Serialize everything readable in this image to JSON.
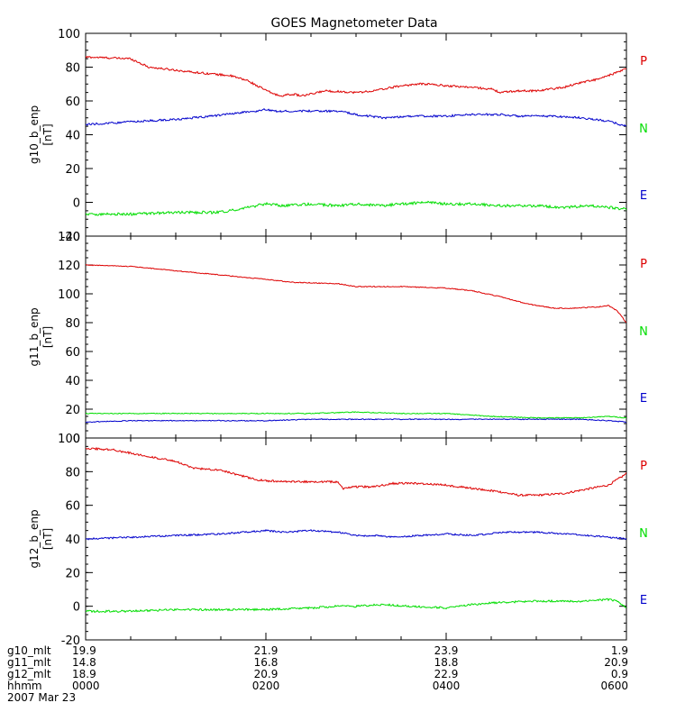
{
  "chart_data": {
    "type": "line",
    "title": "GOES Magnetometer Data",
    "x_domain": [
      0,
      6
    ],
    "x_tick_hours": [
      0,
      2,
      4,
      6
    ],
    "x_minor_step_hours": 0.5,
    "bottom_rows": [
      {
        "label": "g10_mlt",
        "values": [
          "19.9",
          "21.9",
          "23.9",
          "1.9"
        ]
      },
      {
        "label": "g11_mlt",
        "values": [
          "14.8",
          "16.8",
          "18.8",
          "20.9"
        ]
      },
      {
        "label": "g12_mlt",
        "values": [
          "18.9",
          "20.9",
          "22.9",
          "0.9"
        ]
      },
      {
        "label": "hhmm",
        "values": [
          "0000",
          "0200",
          "0400",
          "0600"
        ]
      }
    ],
    "date_label": "2007 Mar 23",
    "panels": [
      {
        "ylabel": "g10_b_enp",
        "unit": "[nT]",
        "ylim": [
          -20,
          100
        ],
        "yticks": [
          "-20",
          "0",
          "20",
          "40",
          "60",
          "80",
          "100"
        ],
        "yticks_values": [
          -20,
          0,
          20,
          40,
          60,
          80,
          100
        ],
        "y_minor_step": 5,
        "series": [
          {
            "name": "P",
            "color": "#dd0000",
            "noise": 0.6,
            "points": [
              [
                0,
                86
              ],
              [
                0.5,
                85
              ],
              [
                0.7,
                80
              ],
              [
                1.2,
                77
              ],
              [
                1.6,
                75
              ],
              [
                1.8,
                72
              ],
              [
                1.9,
                69
              ],
              [
                2.05,
                65
              ],
              [
                2.15,
                63
              ],
              [
                2.3,
                64
              ],
              [
                2.4,
                63
              ],
              [
                2.5,
                64
              ],
              [
                2.65,
                66
              ],
              [
                3.0,
                65
              ],
              [
                3.2,
                66
              ],
              [
                3.4,
                68
              ],
              [
                3.5,
                69
              ],
              [
                3.7,
                70
              ],
              [
                3.8,
                70
              ],
              [
                4.0,
                69
              ],
              [
                4.3,
                68
              ],
              [
                4.5,
                67
              ],
              [
                4.6,
                65
              ],
              [
                4.8,
                66
              ],
              [
                5.0,
                66
              ],
              [
                5.3,
                68
              ],
              [
                5.5,
                71
              ],
              [
                5.7,
                73
              ],
              [
                5.85,
                76
              ],
              [
                6.0,
                79
              ]
            ]
          },
          {
            "name": "N",
            "color": "#00dd00",
            "noise": 0.8,
            "points": [
              [
                0,
                -7
              ],
              [
                0.5,
                -7
              ],
              [
                1.0,
                -6
              ],
              [
                1.4,
                -6
              ],
              [
                1.6,
                -5
              ],
              [
                1.8,
                -3
              ],
              [
                2.0,
                -1
              ],
              [
                2.2,
                -2
              ],
              [
                2.5,
                -1
              ],
              [
                2.8,
                -2
              ],
              [
                3.0,
                -1
              ],
              [
                3.3,
                -2
              ],
              [
                3.5,
                -1
              ],
              [
                3.8,
                0
              ],
              [
                4.0,
                -1
              ],
              [
                4.3,
                -1
              ],
              [
                4.6,
                -2
              ],
              [
                5.0,
                -2
              ],
              [
                5.3,
                -3
              ],
              [
                5.6,
                -2
              ],
              [
                6.0,
                -4
              ]
            ]
          },
          {
            "name": "E",
            "color": "#0000cc",
            "noise": 0.6,
            "points": [
              [
                0,
                46
              ],
              [
                0.3,
                47
              ],
              [
                0.6,
                48
              ],
              [
                1.0,
                49
              ],
              [
                1.4,
                51
              ],
              [
                1.7,
                53
              ],
              [
                1.9,
                54
              ],
              [
                2.0,
                55
              ],
              [
                2.1,
                54
              ],
              [
                2.5,
                54
              ],
              [
                2.8,
                54
              ],
              [
                3.0,
                52
              ],
              [
                3.3,
                50
              ],
              [
                3.6,
                51
              ],
              [
                4.0,
                51
              ],
              [
                4.3,
                52
              ],
              [
                4.6,
                52
              ],
              [
                4.8,
                51
              ],
              [
                5.2,
                51
              ],
              [
                5.5,
                50
              ],
              [
                5.8,
                48
              ],
              [
                6.0,
                45
              ]
            ]
          }
        ],
        "legend": [
          "P",
          "N",
          "E"
        ],
        "legend_colors": [
          "#dd0000",
          "#00dd00",
          "#0000cc"
        ]
      },
      {
        "ylabel": "g11_b_enp",
        "unit": "[nT]",
        "ylim": [
          0,
          140
        ],
        "yticks": [
          "0",
          "20",
          "40",
          "60",
          "80",
          "100",
          "120",
          "140"
        ],
        "yticks_values": [
          0,
          20,
          40,
          60,
          80,
          100,
          120,
          140
        ],
        "y_minor_step": 5,
        "series": [
          {
            "name": "P",
            "color": "#dd0000",
            "noise": 0.3,
            "points": [
              [
                0,
                120
              ],
              [
                0.5,
                119
              ],
              [
                1.0,
                116
              ],
              [
                1.5,
                113
              ],
              [
                2.0,
                110
              ],
              [
                2.3,
                108
              ],
              [
                2.8,
                107
              ],
              [
                3.0,
                105
              ],
              [
                3.5,
                105
              ],
              [
                4.0,
                104
              ],
              [
                4.3,
                102
              ],
              [
                4.6,
                98
              ],
              [
                4.9,
                93
              ],
              [
                5.2,
                90
              ],
              [
                5.4,
                90
              ],
              [
                5.7,
                91
              ],
              [
                5.8,
                92
              ],
              [
                5.9,
                88
              ],
              [
                6.0,
                80
              ]
            ]
          },
          {
            "name": "N",
            "color": "#00dd00",
            "noise": 0.3,
            "points": [
              [
                0,
                17
              ],
              [
                1.0,
                17
              ],
              [
                2.0,
                17
              ],
              [
                2.5,
                17
              ],
              [
                3.0,
                18
              ],
              [
                3.5,
                17
              ],
              [
                4.0,
                17
              ],
              [
                4.5,
                15
              ],
              [
                5.0,
                14
              ],
              [
                5.5,
                14
              ],
              [
                5.8,
                15
              ],
              [
                6.0,
                14
              ]
            ]
          },
          {
            "name": "E",
            "color": "#0000cc",
            "noise": 0.3,
            "points": [
              [
                0,
                11
              ],
              [
                0.5,
                12
              ],
              [
                1.0,
                12
              ],
              [
                2.0,
                12
              ],
              [
                2.5,
                13
              ],
              [
                3.0,
                13
              ],
              [
                3.5,
                13
              ],
              [
                4.0,
                13
              ],
              [
                4.5,
                13
              ],
              [
                5.0,
                13
              ],
              [
                5.5,
                13
              ],
              [
                5.8,
                12
              ],
              [
                6.0,
                11
              ]
            ]
          }
        ],
        "legend": [
          "P",
          "N",
          "E"
        ],
        "legend_colors": [
          "#dd0000",
          "#00dd00",
          "#0000cc"
        ]
      },
      {
        "ylabel": "g12_b_enp",
        "unit": "[nT]",
        "ylim": [
          -20,
          100
        ],
        "yticks": [
          "-20",
          "0",
          "20",
          "40",
          "60",
          "80",
          "100"
        ],
        "yticks_values": [
          -20,
          0,
          20,
          40,
          60,
          80,
          100
        ],
        "y_minor_step": 5,
        "series": [
          {
            "name": "P",
            "color": "#dd0000",
            "noise": 0.6,
            "points": [
              [
                0,
                94
              ],
              [
                0.3,
                93
              ],
              [
                0.6,
                90
              ],
              [
                1.0,
                86
              ],
              [
                1.2,
                82
              ],
              [
                1.5,
                81
              ],
              [
                1.7,
                78
              ],
              [
                1.9,
                75
              ],
              [
                2.2,
                74
              ],
              [
                2.5,
                74
              ],
              [
                2.8,
                74
              ],
              [
                2.85,
                70
              ],
              [
                3.0,
                71
              ],
              [
                3.2,
                71
              ],
              [
                3.4,
                73
              ],
              [
                3.7,
                73
              ],
              [
                4.0,
                72
              ],
              [
                4.3,
                70
              ],
              [
                4.6,
                68
              ],
              [
                4.8,
                66
              ],
              [
                5.0,
                66
              ],
              [
                5.3,
                67
              ],
              [
                5.5,
                69
              ],
              [
                5.8,
                72
              ],
              [
                5.95,
                77
              ],
              [
                6.0,
                79
              ]
            ]
          },
          {
            "name": "N",
            "color": "#00dd00",
            "noise": 0.6,
            "points": [
              [
                0,
                -3
              ],
              [
                0.5,
                -3
              ],
              [
                1.0,
                -2
              ],
              [
                1.5,
                -2
              ],
              [
                2.0,
                -2
              ],
              [
                2.5,
                -1
              ],
              [
                2.8,
                0
              ],
              [
                3.0,
                0
              ],
              [
                3.3,
                1
              ],
              [
                3.6,
                0
              ],
              [
                4.0,
                -1
              ],
              [
                4.3,
                1
              ],
              [
                4.5,
                2
              ],
              [
                5.0,
                3
              ],
              [
                5.5,
                3
              ],
              [
                5.8,
                4
              ],
              [
                5.9,
                3
              ],
              [
                6.0,
                -1
              ]
            ]
          },
          {
            "name": "E",
            "color": "#0000cc",
            "noise": 0.5,
            "points": [
              [
                0,
                40
              ],
              [
                0.5,
                41
              ],
              [
                1.0,
                42
              ],
              [
                1.5,
                43
              ],
              [
                2.0,
                45
              ],
              [
                2.2,
                44
              ],
              [
                2.5,
                45
              ],
              [
                2.8,
                44
              ],
              [
                3.0,
                42
              ],
              [
                3.2,
                42
              ],
              [
                3.4,
                41
              ],
              [
                3.7,
                42
              ],
              [
                4.0,
                43
              ],
              [
                4.3,
                42
              ],
              [
                4.6,
                44
              ],
              [
                5.0,
                44
              ],
              [
                5.3,
                43
              ],
              [
                5.6,
                42
              ],
              [
                5.8,
                41
              ],
              [
                6.0,
                40
              ]
            ]
          }
        ],
        "legend": [
          "P",
          "N",
          "E"
        ],
        "legend_colors": [
          "#dd0000",
          "#00dd00",
          "#0000cc"
        ]
      }
    ]
  }
}
